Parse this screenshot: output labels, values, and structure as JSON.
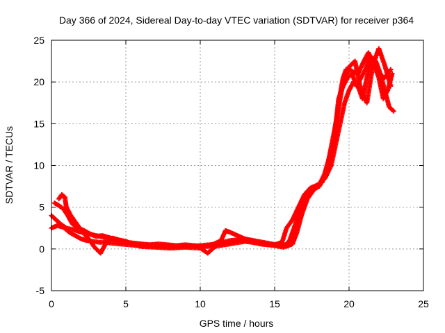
{
  "chart_data": {
    "type": "scatter",
    "title": "Day 366 of 2024, Sidereal Day-to-day VTEC variation (SDTVAR) for receiver p364",
    "xlabel": "GPS time / hours",
    "ylabel": "SDTVAR / TECUs",
    "xlim": [
      0,
      25
    ],
    "ylim": [
      -5,
      25
    ],
    "x_ticks": [
      0,
      5,
      10,
      15,
      20,
      25
    ],
    "y_ticks": [
      -5,
      0,
      5,
      10,
      15,
      20,
      25
    ],
    "grid": true,
    "marker": "plus",
    "color": "#ff0000",
    "series": [
      {
        "name": "SDTVAR",
        "traces": [
          {
            "x": [
              0.0,
              0.3,
              0.6,
              1.0,
              1.5,
              2.0,
              2.5,
              3.0,
              3.5,
              4.0,
              4.5,
              5.0,
              5.5,
              6.0,
              6.5,
              7.0,
              7.5,
              8.0,
              8.5,
              9.0,
              9.5,
              10.0,
              10.5,
              11.0,
              11.5,
              12.0,
              12.5,
              13.0,
              13.5,
              14.0,
              14.5,
              15.0,
              15.5,
              16.0,
              16.3,
              16.6,
              17.0,
              17.5,
              18.0,
              18.5,
              18.8,
              19.0,
              19.2,
              19.4,
              19.6,
              19.8,
              20.0,
              20.3,
              20.6,
              21.0,
              21.3,
              21.6,
              22.0,
              22.4,
              22.8
            ],
            "y": [
              4.0,
              3.5,
              3.0,
              2.5,
              2.3,
              2.0,
              1.8,
              1.6,
              1.4,
              1.2,
              1.0,
              0.8,
              0.7,
              0.6,
              0.5,
              0.5,
              0.4,
              0.4,
              0.4,
              0.4,
              0.4,
              0.3,
              0.3,
              0.5,
              0.8,
              1.0,
              1.1,
              1.0,
              0.8,
              0.6,
              0.5,
              0.4,
              0.4,
              0.6,
              1.5,
              3.0,
              5.5,
              7.0,
              7.5,
              9.0,
              11.0,
              13.5,
              16.0,
              18.5,
              20.5,
              21.5,
              21.5,
              21.2,
              21.0,
              22.5,
              23.5,
              22.5,
              21.0,
              20.5,
              21.5
            ]
          },
          {
            "x": [
              0.0,
              0.4,
              0.8,
              1.2,
              1.6,
              2.0,
              2.4,
              2.8,
              3.2,
              3.6,
              4.0,
              4.6,
              5.2,
              5.8,
              6.4,
              7.0,
              7.6,
              8.2,
              8.8,
              9.4,
              10.0,
              10.6,
              11.2,
              11.8,
              12.4,
              13.0,
              13.6,
              14.2,
              14.8,
              15.3,
              15.8,
              16.2,
              16.5,
              16.8,
              17.2,
              17.6,
              18.0,
              18.4,
              18.8,
              19.1,
              19.4,
              19.7,
              20.0,
              20.3,
              20.6,
              20.9,
              21.2,
              21.5,
              21.8,
              22.1,
              22.4,
              22.7,
              23.0
            ],
            "y": [
              2.5,
              2.8,
              2.6,
              2.0,
              1.6,
              1.2,
              1.0,
              0.9,
              0.8,
              0.8,
              0.7,
              0.6,
              0.5,
              0.4,
              0.4,
              0.3,
              0.3,
              0.2,
              0.3,
              0.3,
              0.4,
              0.5,
              0.6,
              0.8,
              1.0,
              1.2,
              1.0,
              0.8,
              0.6,
              0.4,
              0.3,
              0.6,
              2.0,
              4.0,
              6.0,
              7.0,
              7.8,
              8.5,
              10.0,
              12.5,
              15.0,
              17.5,
              19.0,
              20.0,
              19.5,
              18.0,
              20.5,
              23.0,
              22.5,
              21.0,
              19.0,
              17.0,
              16.5
            ]
          },
          {
            "x": [
              0.2,
              0.5,
              0.8,
              1.1,
              1.4,
              1.8,
              2.2,
              2.6,
              3.0,
              3.4,
              3.8,
              4.2,
              4.8,
              5.4,
              6.0,
              6.6,
              7.2,
              7.8,
              8.4,
              9.0,
              9.6,
              10.2,
              10.8,
              11.4,
              11.7,
              12.0,
              12.5,
              13.0,
              13.5,
              14.0,
              14.5,
              15.0,
              15.5,
              15.8,
              16.2,
              16.6,
              17.0,
              17.4,
              17.8,
              18.2,
              18.6,
              19.0,
              19.3,
              19.6,
              19.9,
              20.2,
              20.5,
              20.8,
              21.1,
              21.4,
              21.7,
              22.0,
              22.3,
              22.6,
              22.9
            ],
            "y": [
              5.5,
              5.2,
              4.8,
              4.0,
              3.0,
              2.5,
              2.2,
              1.8,
              1.5,
              1.6,
              1.4,
              1.2,
              0.9,
              0.7,
              0.6,
              0.5,
              0.6,
              0.5,
              0.4,
              0.5,
              0.4,
              0.3,
              0.5,
              1.0,
              2.2,
              2.0,
              1.6,
              1.2,
              1.0,
              0.8,
              0.6,
              0.5,
              0.8,
              2.5,
              3.5,
              5.0,
              6.5,
              7.3,
              7.6,
              8.0,
              10.5,
              13.0,
              18.0,
              19.5,
              20.5,
              21.0,
              19.5,
              20.5,
              21.5,
              23.0,
              22.0,
              20.5,
              18.0,
              19.0,
              21.0
            ]
          },
          {
            "x": [
              0.5,
              0.7,
              0.9,
              1.0,
              1.3,
              1.7,
              2.1,
              2.5,
              2.9,
              3.3,
              3.7,
              4.1,
              4.5,
              5.0,
              6.0,
              7.0,
              8.0,
              9.0,
              10.0,
              10.5,
              11.0,
              12.0,
              13.0,
              14.0,
              15.0,
              15.6,
              16.0,
              16.4,
              16.8,
              17.2,
              17.6,
              18.0,
              18.5,
              19.0,
              19.5,
              20.0,
              20.4,
              20.8,
              21.2,
              21.6,
              22.0,
              22.4,
              22.8
            ],
            "y": [
              6.0,
              6.5,
              6.2,
              5.0,
              4.0,
              3.0,
              2.0,
              1.2,
              0.2,
              -0.5,
              0.8,
              1.3,
              1.1,
              0.9,
              0.3,
              0.2,
              0.1,
              0.2,
              0.1,
              -0.5,
              0.3,
              0.6,
              0.9,
              0.7,
              0.4,
              0.2,
              1.0,
              3.0,
              5.5,
              6.8,
              7.4,
              7.7,
              9.5,
              14.0,
              19.0,
              21.8,
              22.5,
              19.0,
              17.5,
              22.0,
              24.0,
              22.0,
              19.5
            ]
          }
        ]
      }
    ]
  }
}
